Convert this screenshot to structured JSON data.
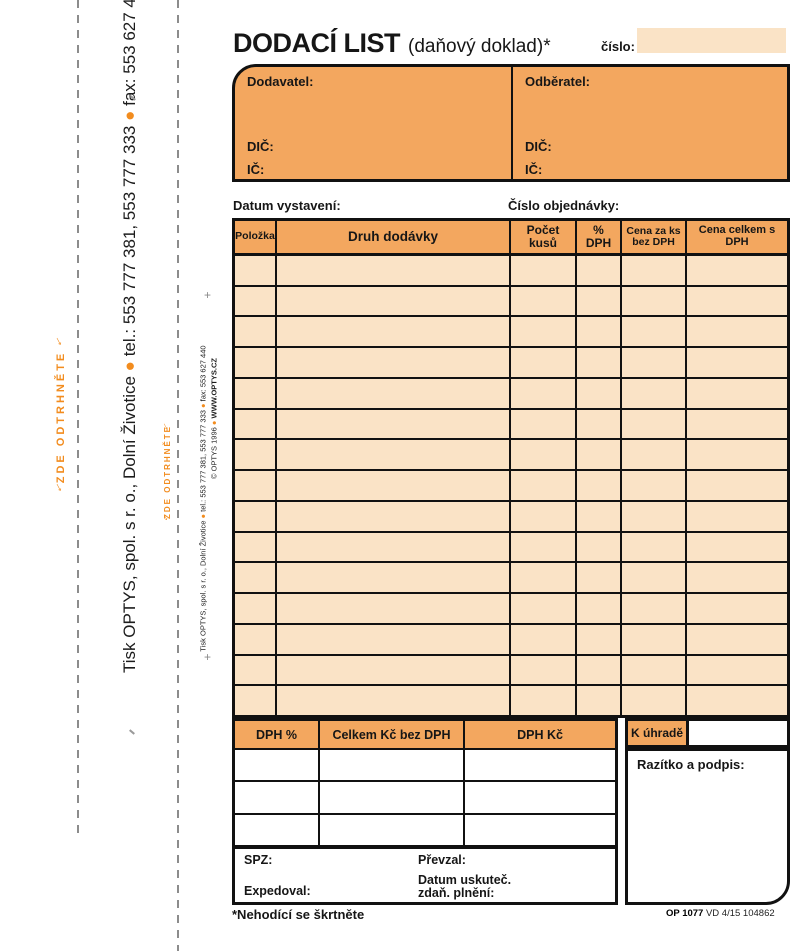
{
  "page": {
    "title": "DODACÍ LIST",
    "subtitle": "(daňový doklad)*",
    "number_label": "číslo:"
  },
  "tear_strip": {
    "tear_label": "ZDE ODTRHNĚTE",
    "arrow": "↓",
    "plus": "+",
    "company_line": {
      "part1": "Tisk OPTYS, spol. s r. o., Dolní Životice",
      "bullet": "●",
      "part2": "tel.: 553 777 381, 553 777 333",
      "part3": "fax: 553 627 440"
    },
    "copyright_line": {
      "part1": "© OPTYS 1996",
      "bullet": "●",
      "part2": "WWW.OPTYS.CZ"
    }
  },
  "parties": {
    "supplier_label": "Dodavatel:",
    "customer_label": "Odběratel:",
    "vat_id_label": "DIČ:",
    "company_id_label": "IČ:"
  },
  "meta": {
    "issue_date_label": "Datum vystavení:",
    "order_number_label": "Číslo objednávky:"
  },
  "table": {
    "row_count": 15,
    "column_count": 6,
    "columns": [
      {
        "label": "Položka"
      },
      {
        "label": "Druh dodávky"
      },
      {
        "label": "Počet kusů"
      },
      {
        "label": "% DPH"
      },
      {
        "label": "Cena za ks bez DPH"
      },
      {
        "label": "Cena celkem s DPH"
      }
    ]
  },
  "summary": {
    "vat_rate_label": "DPH %",
    "total_excl_vat_label": "Celkem Kč bez DPH",
    "vat_amount_label": "DPH Kč",
    "row_count": 3,
    "column_count": 3,
    "to_pay_label": "K úhradě",
    "stamp_label": "Razítko a podpis:"
  },
  "dispatch": {
    "spz_label": "SPZ:",
    "expedoval_label": "Expedoval:",
    "prevzal_label": "Převzal:",
    "datum_line1": "Datum uskuteč.",
    "datum_line2": "zdaň. plnění:"
  },
  "footer": {
    "note": "*Nehodící se škrtněte",
    "form_code": "OP 1077",
    "form_meta": "VD 4/15 104862"
  },
  "colors": {
    "orange": "#F3A75F",
    "pale_peach": "#FAE3C6",
    "accent_orange": "#F28C1E"
  }
}
